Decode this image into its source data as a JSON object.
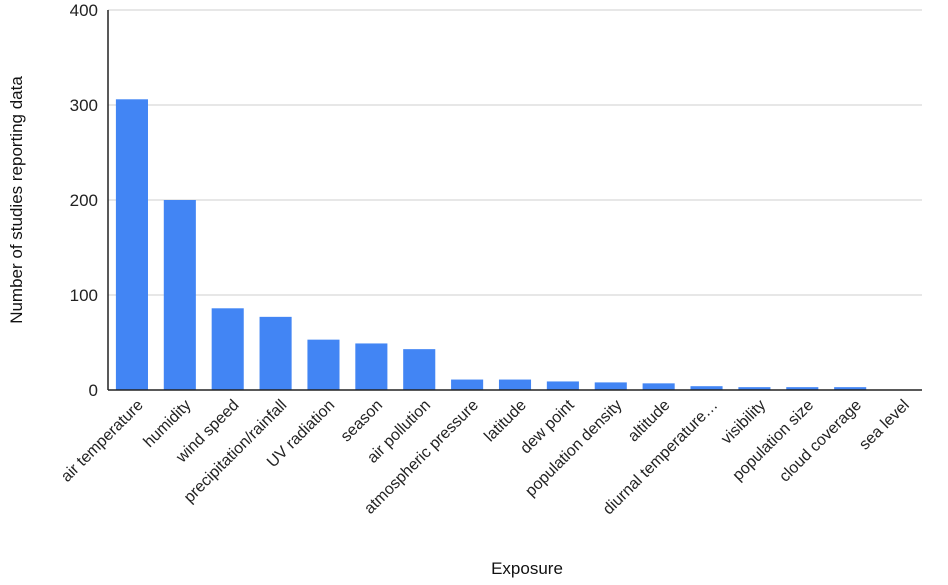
{
  "chart_data": {
    "type": "bar",
    "title": "",
    "xlabel": "Exposure",
    "ylabel": "Number of studies reporting data",
    "ylim": [
      0,
      400
    ],
    "yticks": [
      0,
      100,
      200,
      300,
      400
    ],
    "grid": true,
    "legend": "none",
    "categories": [
      "air temperature",
      "humidity",
      "wind speed",
      "precipitation/rainfall",
      "UV radiation",
      "season",
      "air pollution",
      "atmospheric pressure",
      "latitude",
      "dew point",
      "population density",
      "altitude",
      "diurnal temperature…",
      "visibility",
      "population size",
      "cloud coverage",
      "sea level"
    ],
    "values": [
      306,
      200,
      86,
      77,
      53,
      49,
      43,
      11,
      11,
      9,
      8,
      7,
      4,
      3,
      3,
      3,
      0
    ],
    "colors": {
      "bar": "#4285f4",
      "grid": "#cfcfcf",
      "axis": "#222222"
    }
  }
}
